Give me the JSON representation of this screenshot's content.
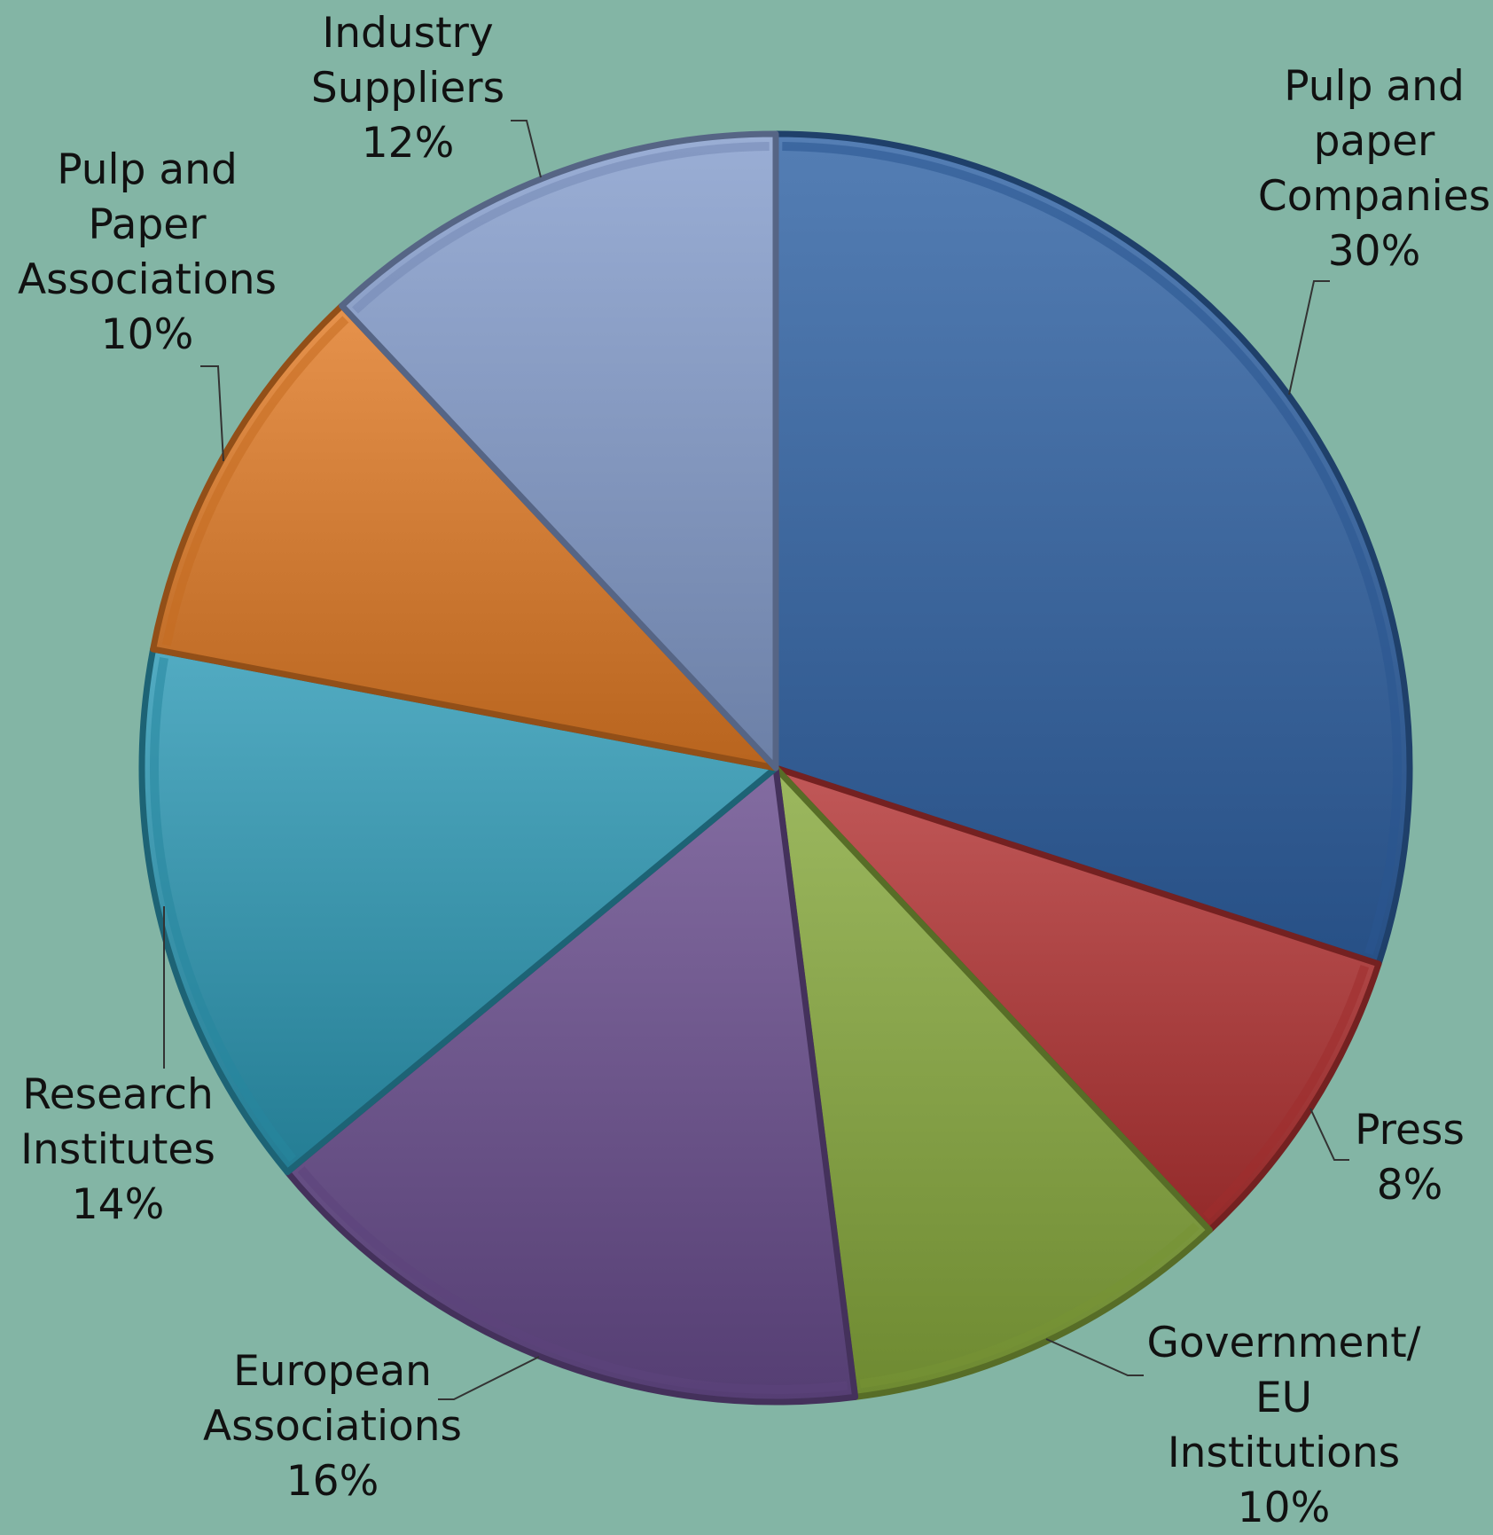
{
  "chart_data": {
    "type": "pie",
    "title": "",
    "start_angle_deg": 0,
    "direction": "clockwise",
    "slices": [
      {
        "label_lines": [
          "Pulp and",
          "paper",
          "Companies"
        ],
        "value_text": "30%",
        "value": 30,
        "color": "#2f62a3"
      },
      {
        "label_lines": [
          "Press"
        ],
        "value_text": "8%",
        "value": 8,
        "color": "#b33333"
      },
      {
        "label_lines": [
          "Government/",
          "EU",
          "Institutions"
        ],
        "value_text": "10%",
        "value": 10,
        "color": "#86a83c"
      },
      {
        "label_lines": [
          "European",
          "Associations"
        ],
        "value_text": "16%",
        "value": 16,
        "color": "#684c8c"
      },
      {
        "label_lines": [
          "Research",
          "Institutes"
        ],
        "value_text": "14%",
        "value": 14,
        "color": "#2c98b4"
      },
      {
        "label_lines": [
          "Pulp and",
          "Paper",
          "Associations"
        ],
        "value_text": "10%",
        "value": 10,
        "color": "#e07a25"
      },
      {
        "label_lines": [
          "Industry",
          "Suppliers"
        ],
        "value_text": "12%",
        "value": 12,
        "color": "#849ccc"
      }
    ]
  }
}
